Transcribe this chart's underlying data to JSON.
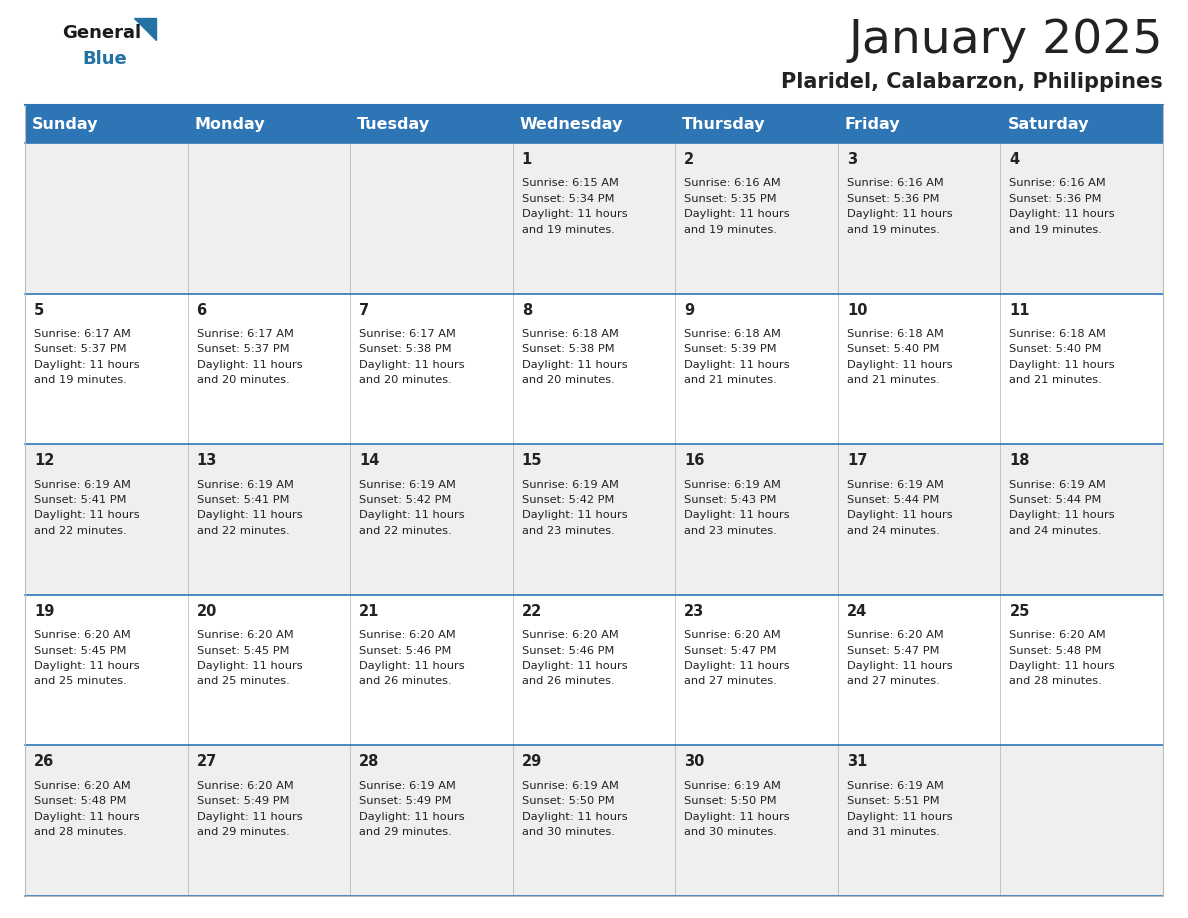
{
  "title": "January 2025",
  "subtitle": "Plaridel, Calabarzon, Philippines",
  "header_bg": "#2E75B6",
  "header_text_color": "#FFFFFF",
  "day_names": [
    "Sunday",
    "Monday",
    "Tuesday",
    "Wednesday",
    "Thursday",
    "Friday",
    "Saturday"
  ],
  "cell_bg_even": "#EFEFEF",
  "cell_bg_odd": "#FFFFFF",
  "text_color": "#222222",
  "logo_general_color": "#1A1A1A",
  "logo_blue_color": "#2471A3",
  "row_separator_color": "#2E75B6",
  "col_separator_color": "#BBBBBB",
  "calendar_data": [
    [
      null,
      null,
      null,
      {
        "day": 1,
        "sunrise": "6:15 AM",
        "sunset": "5:34 PM",
        "daylight": "11 hours and 19 minutes."
      },
      {
        "day": 2,
        "sunrise": "6:16 AM",
        "sunset": "5:35 PM",
        "daylight": "11 hours and 19 minutes."
      },
      {
        "day": 3,
        "sunrise": "6:16 AM",
        "sunset": "5:36 PM",
        "daylight": "11 hours and 19 minutes."
      },
      {
        "day": 4,
        "sunrise": "6:16 AM",
        "sunset": "5:36 PM",
        "daylight": "11 hours and 19 minutes."
      }
    ],
    [
      {
        "day": 5,
        "sunrise": "6:17 AM",
        "sunset": "5:37 PM",
        "daylight": "11 hours and 19 minutes."
      },
      {
        "day": 6,
        "sunrise": "6:17 AM",
        "sunset": "5:37 PM",
        "daylight": "11 hours and 20 minutes."
      },
      {
        "day": 7,
        "sunrise": "6:17 AM",
        "sunset": "5:38 PM",
        "daylight": "11 hours and 20 minutes."
      },
      {
        "day": 8,
        "sunrise": "6:18 AM",
        "sunset": "5:38 PM",
        "daylight": "11 hours and 20 minutes."
      },
      {
        "day": 9,
        "sunrise": "6:18 AM",
        "sunset": "5:39 PM",
        "daylight": "11 hours and 21 minutes."
      },
      {
        "day": 10,
        "sunrise": "6:18 AM",
        "sunset": "5:40 PM",
        "daylight": "11 hours and 21 minutes."
      },
      {
        "day": 11,
        "sunrise": "6:18 AM",
        "sunset": "5:40 PM",
        "daylight": "11 hours and 21 minutes."
      }
    ],
    [
      {
        "day": 12,
        "sunrise": "6:19 AM",
        "sunset": "5:41 PM",
        "daylight": "11 hours and 22 minutes."
      },
      {
        "day": 13,
        "sunrise": "6:19 AM",
        "sunset": "5:41 PM",
        "daylight": "11 hours and 22 minutes."
      },
      {
        "day": 14,
        "sunrise": "6:19 AM",
        "sunset": "5:42 PM",
        "daylight": "11 hours and 22 minutes."
      },
      {
        "day": 15,
        "sunrise": "6:19 AM",
        "sunset": "5:42 PM",
        "daylight": "11 hours and 23 minutes."
      },
      {
        "day": 16,
        "sunrise": "6:19 AM",
        "sunset": "5:43 PM",
        "daylight": "11 hours and 23 minutes."
      },
      {
        "day": 17,
        "sunrise": "6:19 AM",
        "sunset": "5:44 PM",
        "daylight": "11 hours and 24 minutes."
      },
      {
        "day": 18,
        "sunrise": "6:19 AM",
        "sunset": "5:44 PM",
        "daylight": "11 hours and 24 minutes."
      }
    ],
    [
      {
        "day": 19,
        "sunrise": "6:20 AM",
        "sunset": "5:45 PM",
        "daylight": "11 hours and 25 minutes."
      },
      {
        "day": 20,
        "sunrise": "6:20 AM",
        "sunset": "5:45 PM",
        "daylight": "11 hours and 25 minutes."
      },
      {
        "day": 21,
        "sunrise": "6:20 AM",
        "sunset": "5:46 PM",
        "daylight": "11 hours and 26 minutes."
      },
      {
        "day": 22,
        "sunrise": "6:20 AM",
        "sunset": "5:46 PM",
        "daylight": "11 hours and 26 minutes."
      },
      {
        "day": 23,
        "sunrise": "6:20 AM",
        "sunset": "5:47 PM",
        "daylight": "11 hours and 27 minutes."
      },
      {
        "day": 24,
        "sunrise": "6:20 AM",
        "sunset": "5:47 PM",
        "daylight": "11 hours and 27 minutes."
      },
      {
        "day": 25,
        "sunrise": "6:20 AM",
        "sunset": "5:48 PM",
        "daylight": "11 hours and 28 minutes."
      }
    ],
    [
      {
        "day": 26,
        "sunrise": "6:20 AM",
        "sunset": "5:48 PM",
        "daylight": "11 hours and 28 minutes."
      },
      {
        "day": 27,
        "sunrise": "6:20 AM",
        "sunset": "5:49 PM",
        "daylight": "11 hours and 29 minutes."
      },
      {
        "day": 28,
        "sunrise": "6:19 AM",
        "sunset": "5:49 PM",
        "daylight": "11 hours and 29 minutes."
      },
      {
        "day": 29,
        "sunrise": "6:19 AM",
        "sunset": "5:50 PM",
        "daylight": "11 hours and 30 minutes."
      },
      {
        "day": 30,
        "sunrise": "6:19 AM",
        "sunset": "5:50 PM",
        "daylight": "11 hours and 30 minutes."
      },
      {
        "day": 31,
        "sunrise": "6:19 AM",
        "sunset": "5:51 PM",
        "daylight": "11 hours and 31 minutes."
      },
      null
    ]
  ],
  "n_cols": 7,
  "n_rows": 5
}
